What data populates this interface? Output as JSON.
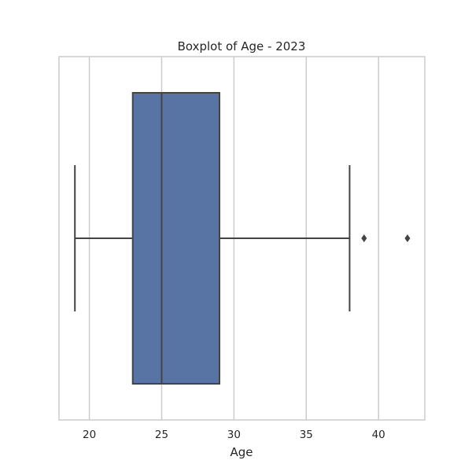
{
  "chart_data": {
    "type": "box",
    "title": "Boxplot of Age - 2023",
    "xlabel": "Age",
    "ylabel": "",
    "xlim": [
      17.9,
      43.2
    ],
    "xticks": [
      20,
      25,
      30,
      35,
      40
    ],
    "orientation": "horizontal",
    "grid": true,
    "box": {
      "whisker_low": 19,
      "q1": 23,
      "median": 25,
      "q3": 29,
      "whisker_high": 38,
      "outliers": [
        39,
        42
      ]
    },
    "colors": {
      "box_fill": "#5874a4",
      "line": "#444444",
      "grid": "#cccccc",
      "frame": "#cccccc"
    }
  }
}
